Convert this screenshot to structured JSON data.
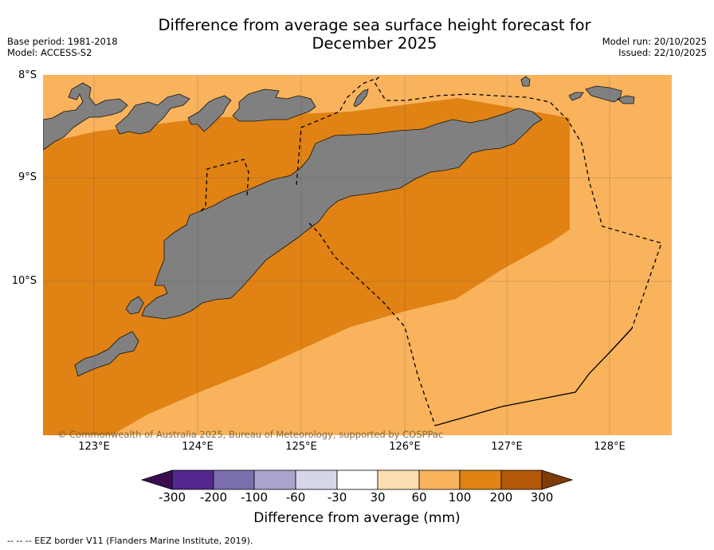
{
  "title_line1": "Difference from average sea surface height forecast for",
  "title_line2": "December 2025",
  "base_period": "Base period: 1981-2018",
  "model": "Model: ACCESS-S2",
  "model_run": "Model run: 20/10/2025",
  "issued": "Issued: 22/10/2025",
  "map": {
    "latitudes": [
      "8°S",
      "9°S",
      "10°S"
    ],
    "longitudes": [
      "123°E",
      "124°E",
      "125°E",
      "126°E",
      "127°E",
      "128°E"
    ],
    "copyright": "© Commonwealth of Australia 2025, Bureau of Meteorology, supported by COSPPac"
  },
  "colorbar": {
    "title": "Difference from average (mm)",
    "ticks": [
      "-300",
      "-200",
      "-100",
      "-60",
      "-30",
      "30",
      "60",
      "100",
      "200",
      "300"
    ],
    "colors": {
      "under": "#3b0f4f",
      "c1": "#54278f",
      "c2": "#7b6fb0",
      "c3": "#aba4cf",
      "c4": "#d6d6e9",
      "c5": "#ffffff",
      "c6": "#fddeb0",
      "c7": "#f9b35c",
      "c8": "#e08214",
      "c9": "#b35806",
      "over": "#7f3b08"
    }
  },
  "footnote": "--  --  -- EEZ border V11 (Flanders Marine Institute, 2019)."
}
